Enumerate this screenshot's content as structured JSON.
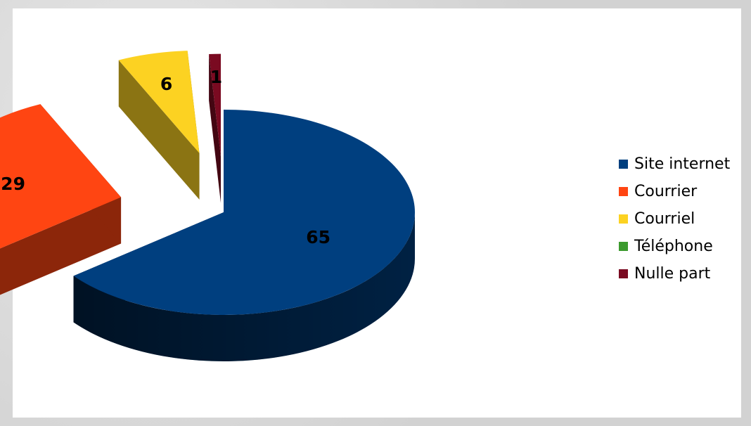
{
  "chart_data": {
    "type": "pie",
    "categories": [
      "Site internet",
      "Courrier",
      "Courriel",
      "Téléphone",
      "Nulle part"
    ],
    "values": [
      65,
      29,
      6,
      0,
      1
    ],
    "data_labels": [
      "65",
      "29",
      "6",
      "",
      "1"
    ],
    "colors": [
      "#003F7F",
      "#FF4512",
      "#FCD222",
      "#3C9A2E",
      "#7A0A21"
    ],
    "style": "3d-exploded",
    "legend_position": "right"
  }
}
